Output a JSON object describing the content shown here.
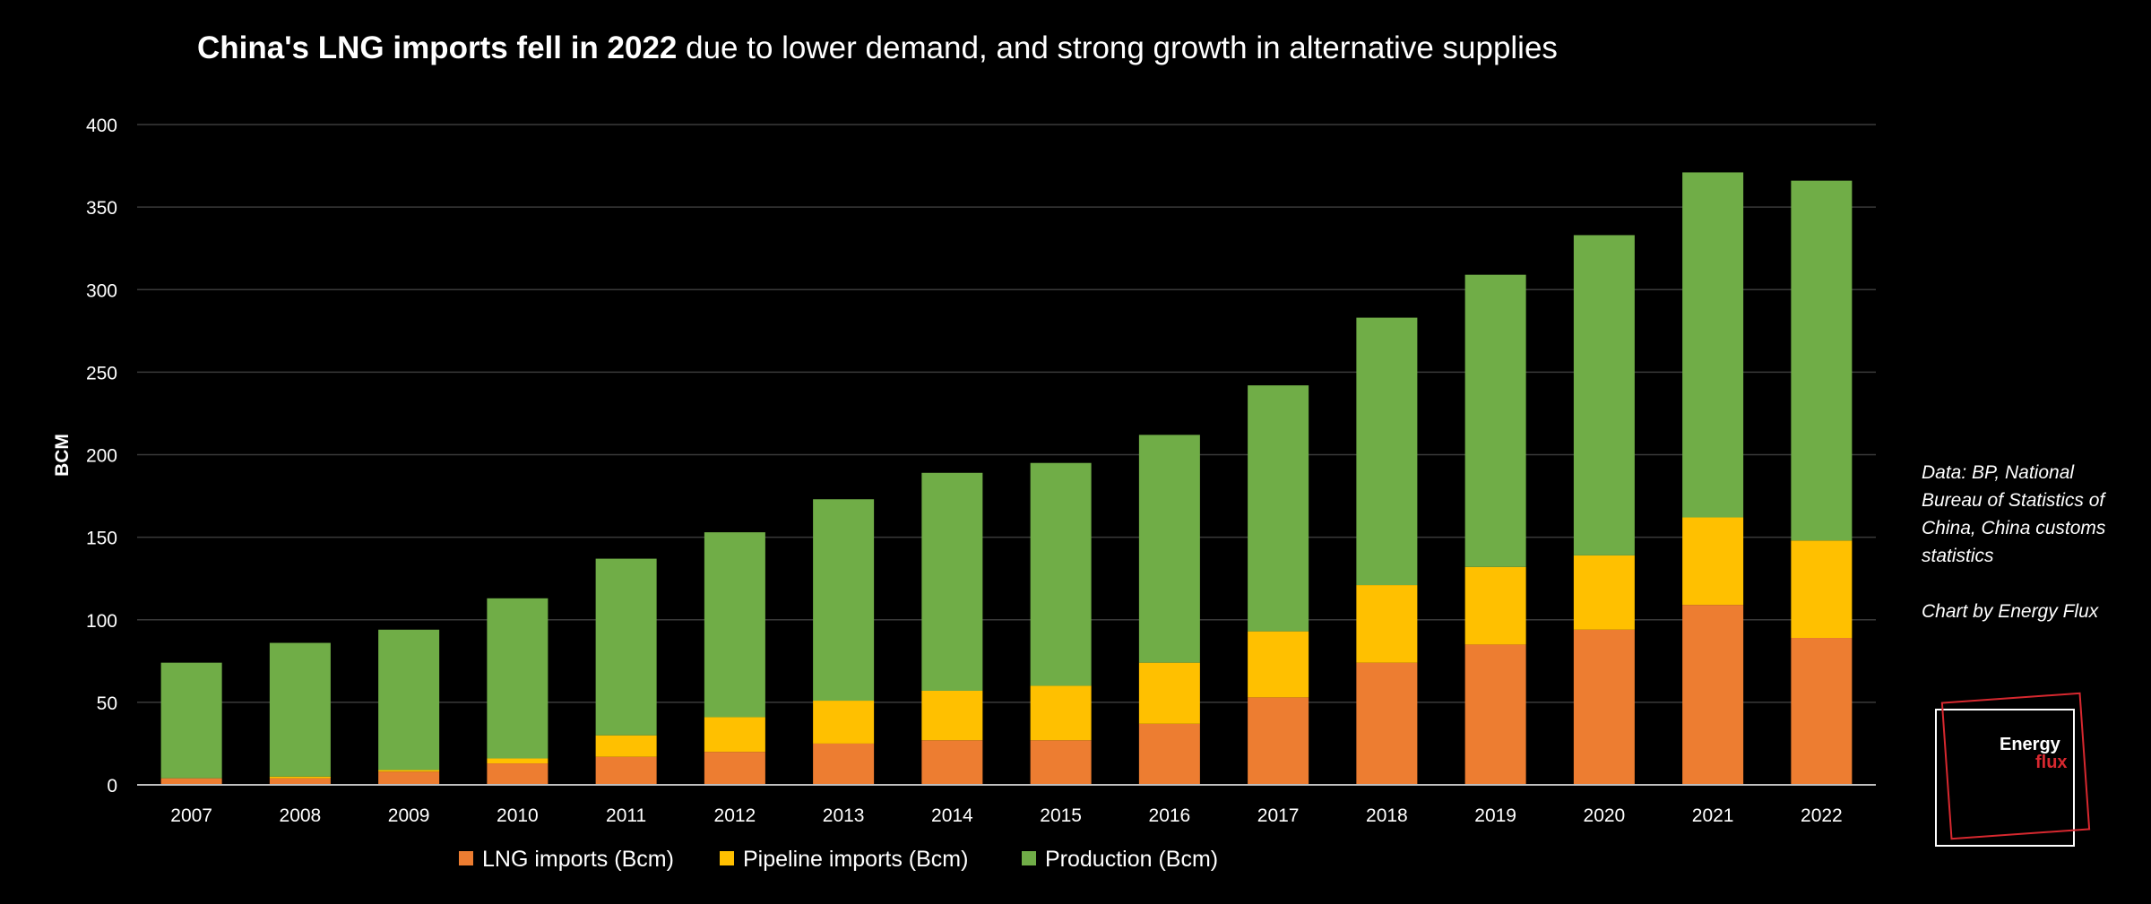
{
  "title": {
    "bold": "China's LNG imports fell in 2022",
    "rest": " due to lower demand, and strong growth in alternative supplies"
  },
  "source_note": "Data: BP, National Bureau of Statistics of China, China customs statistics",
  "credit": "Chart by Energy Flux",
  "logo": {
    "word1": "Energy",
    "word2": "flux"
  },
  "colors": {
    "lng": "#ED7D31",
    "pipeline": "#FFC000",
    "production": "#70AD47",
    "background": "#000000"
  },
  "chart_data": {
    "type": "bar",
    "stacked": true,
    "title": "China's LNG imports fell in 2022 due to lower demand, and strong growth in alternative supplies",
    "xlabel": "",
    "ylabel": "BCM",
    "ylim": [
      0,
      400
    ],
    "yticks": [
      0,
      50,
      100,
      150,
      200,
      250,
      300,
      350,
      400
    ],
    "grid": true,
    "legend_position": "bottom",
    "categories": [
      "2007",
      "2008",
      "2009",
      "2010",
      "2011",
      "2012",
      "2013",
      "2014",
      "2015",
      "2016",
      "2017",
      "2018",
      "2019",
      "2020",
      "2021",
      "2022"
    ],
    "series": [
      {
        "name": "LNG imports (Bcm)",
        "color": "#ED7D31",
        "values": [
          4,
          4,
          8,
          13,
          17,
          20,
          25,
          27,
          27,
          37,
          53,
          74,
          85,
          94,
          109,
          89
        ]
      },
      {
        "name": "Pipeline imports (Bcm)",
        "color": "#FFC000",
        "values": [
          0,
          1,
          1,
          3,
          13,
          21,
          26,
          30,
          33,
          37,
          40,
          47,
          47,
          45,
          53,
          59
        ]
      },
      {
        "name": "Production (Bcm)",
        "color": "#70AD47",
        "values": [
          70,
          81,
          85,
          97,
          107,
          112,
          122,
          132,
          135,
          138,
          149,
          162,
          177,
          194,
          209,
          218
        ]
      }
    ]
  }
}
